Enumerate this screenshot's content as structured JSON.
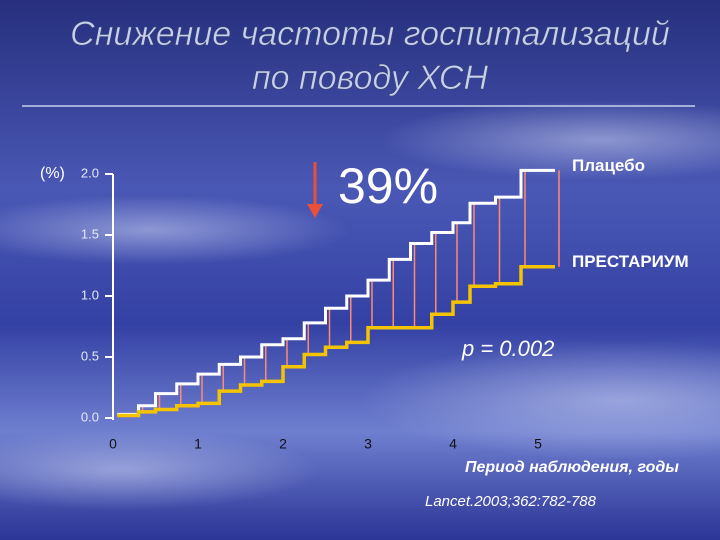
{
  "chart_data": {
    "type": "line",
    "step": true,
    "title": [
      "Снижение частоты госпитализаций",
      "по поводу ХСН"
    ],
    "y_unit": "(%)",
    "x_label": "Период наблюдения, годы",
    "source": "Lancet.2003;362:782-788",
    "annotations": {
      "reduction": "39%",
      "p_value": "p = 0.002"
    },
    "x": [
      0.05,
      0.3,
      0.5,
      0.75,
      1,
      1.25,
      1.5,
      1.75,
      2,
      2.25,
      2.5,
      2.75,
      3,
      3.25,
      3.5,
      3.75,
      4,
      4.2,
      4.5,
      4.8,
      5.2
    ],
    "series": [
      {
        "name": "Плацебо",
        "color": "#ffffff",
        "values": [
          0.03,
          0.1,
          0.2,
          0.28,
          0.36,
          0.44,
          0.5,
          0.6,
          0.65,
          0.78,
          0.9,
          1.0,
          1.13,
          1.3,
          1.43,
          1.52,
          1.6,
          1.76,
          1.81,
          2.03,
          2.03
        ]
      },
      {
        "name": "ПРЕСТАРИУМ",
        "color": "#f5c400",
        "values": [
          0.02,
          0.05,
          0.07,
          0.1,
          0.12,
          0.22,
          0.27,
          0.3,
          0.42,
          0.52,
          0.58,
          0.62,
          0.74,
          0.74,
          0.74,
          0.85,
          0.95,
          1.08,
          1.1,
          1.24,
          1.24
        ]
      }
    ],
    "connector_color": "#ff8a70",
    "xlim": [
      0,
      5.2
    ],
    "xticks": [
      0,
      1,
      2,
      3,
      4,
      5
    ],
    "ylim": [
      0,
      2.0
    ],
    "yticks": [
      {
        "value": 0,
        "label": "0.0"
      },
      {
        "value": 0.5,
        "label": "0.5"
      },
      {
        "value": 1.0,
        "label": "1.0"
      },
      {
        "value": 1.5,
        "label": "1.5"
      },
      {
        "value": 2.0,
        "label": "2.0"
      }
    ]
  }
}
